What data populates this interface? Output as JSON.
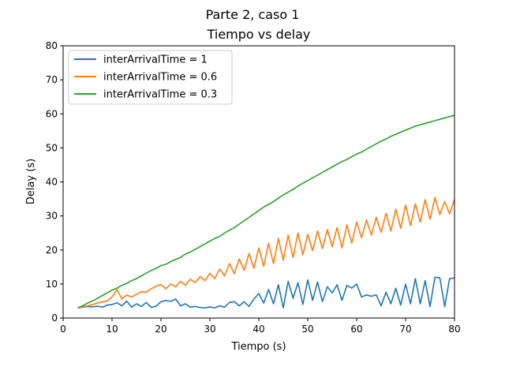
{
  "chart_data": {
    "type": "line",
    "suptitle": "Parte 2, caso 1",
    "title": "Tiempo vs delay",
    "xlabel": "Tiempo (s)",
    "ylabel": "Delay (s)",
    "xlim": [
      0,
      80
    ],
    "ylim": [
      0,
      80
    ],
    "xticks": [
      "0",
      "10",
      "20",
      "30",
      "40",
      "50",
      "60",
      "70",
      "80"
    ],
    "yticks": [
      "0",
      "10",
      "20",
      "30",
      "40",
      "50",
      "60",
      "70",
      "80"
    ],
    "grid": false,
    "legend_position": "upper-left",
    "series": [
      {
        "name": "interArrivalTime = 1",
        "color": "#1f77b4",
        "x": [
          3,
          4,
          5,
          6,
          7,
          8,
          9,
          10,
          11,
          12,
          13,
          14,
          15,
          16,
          17,
          18,
          19,
          20,
          21,
          22,
          23,
          24,
          25,
          26,
          27,
          28,
          29,
          30,
          31,
          32,
          33,
          34,
          35,
          36,
          37,
          38,
          39,
          40,
          41,
          42,
          43,
          44,
          45,
          46,
          47,
          48,
          49,
          50,
          51,
          52,
          53,
          54,
          55,
          56,
          57,
          58,
          59,
          60,
          61,
          62,
          63,
          64,
          65,
          66,
          67,
          68,
          69,
          70,
          71,
          72,
          73,
          74,
          75,
          76,
          77,
          78,
          79,
          80
        ],
        "y": [
          3.0,
          3.2,
          3.4,
          3.3,
          3.5,
          3.2,
          3.8,
          4.0,
          4.5,
          3.6,
          5.0,
          3.2,
          4.2,
          3.4,
          4.6,
          3.1,
          3.5,
          4.8,
          5.2,
          4.9,
          5.6,
          3.6,
          4.2,
          3.2,
          3.4,
          3.1,
          3.0,
          3.3,
          3.0,
          3.6,
          3.2,
          4.6,
          4.8,
          3.6,
          4.8,
          3.4,
          5.6,
          7.2,
          4.4,
          8.4,
          4.2,
          9.8,
          3.0,
          10.8,
          5.8,
          10.4,
          4.0,
          11.2,
          5.2,
          10.6,
          4.8,
          9.2,
          7.4,
          9.8,
          5.2,
          9.6,
          8.8,
          10.0,
          6.2,
          6.8,
          6.4,
          6.8,
          3.6,
          7.6,
          4.2,
          8.8,
          3.8,
          10.0,
          4.2,
          11.6,
          4.2,
          11.0,
          3.4,
          12.0,
          11.8,
          3.4,
          11.6,
          11.8
        ]
      },
      {
        "name": "interArrivalTime = 0.6",
        "color": "#ff7f0e",
        "x": [
          3,
          4,
          5,
          6,
          7,
          8,
          9,
          10,
          11,
          12,
          13,
          14,
          15,
          16,
          17,
          18,
          19,
          20,
          21,
          22,
          23,
          24,
          25,
          26,
          27,
          28,
          29,
          30,
          31,
          32,
          33,
          34,
          35,
          36,
          37,
          38,
          39,
          40,
          41,
          42,
          43,
          44,
          45,
          46,
          47,
          48,
          49,
          50,
          51,
          52,
          53,
          54,
          55,
          56,
          57,
          58,
          59,
          60,
          61,
          62,
          63,
          64,
          65,
          66,
          67,
          68,
          69,
          70,
          71,
          72,
          73,
          74,
          75,
          76,
          77,
          78,
          79,
          80
        ],
        "y": [
          3.0,
          3.3,
          3.6,
          4.0,
          4.4,
          4.8,
          5.0,
          6.2,
          8.4,
          5.6,
          6.8,
          6.2,
          7.0,
          7.8,
          7.6,
          8.6,
          9.4,
          9.8,
          8.6,
          10.0,
          9.2,
          10.8,
          9.6,
          11.4,
          10.4,
          12.2,
          11.0,
          13.2,
          11.6,
          14.4,
          12.4,
          16.0,
          13.0,
          17.4,
          14.0,
          19.0,
          14.6,
          20.6,
          15.2,
          22.0,
          16.0,
          23.4,
          17.0,
          24.4,
          17.8,
          25.0,
          18.6,
          24.6,
          19.8,
          25.6,
          20.4,
          26.0,
          21.0,
          26.6,
          20.6,
          27.4,
          22.0,
          28.2,
          23.6,
          28.8,
          24.4,
          29.6,
          25.2,
          30.8,
          25.6,
          32.0,
          26.4,
          33.2,
          27.2,
          33.6,
          28.2,
          34.8,
          29.0,
          35.4,
          30.4,
          34.2,
          30.6,
          34.8
        ]
      },
      {
        "name": "interArrivalTime = 0.3",
        "color": "#2ca02c",
        "x": [
          3,
          4,
          5,
          6,
          7,
          8,
          9,
          10,
          11,
          12,
          13,
          14,
          15,
          16,
          17,
          18,
          19,
          20,
          21,
          22,
          23,
          24,
          25,
          26,
          27,
          28,
          29,
          30,
          31,
          32,
          33,
          34,
          35,
          36,
          37,
          38,
          39,
          40,
          41,
          42,
          43,
          44,
          45,
          46,
          47,
          48,
          49,
          50,
          51,
          52,
          53,
          54,
          55,
          56,
          57,
          58,
          59,
          60,
          61,
          62,
          63,
          64,
          65,
          66,
          67,
          68,
          69,
          70,
          71,
          72,
          73,
          74,
          75,
          76,
          77,
          78,
          79,
          80
        ],
        "y": [
          3.0,
          3.6,
          4.4,
          5.0,
          5.8,
          6.6,
          7.4,
          8.2,
          8.8,
          9.6,
          10.2,
          11.0,
          11.6,
          12.4,
          13.2,
          14.0,
          14.6,
          15.4,
          15.8,
          16.6,
          17.2,
          17.8,
          18.8,
          19.4,
          20.2,
          21.0,
          21.8,
          22.6,
          23.4,
          24.0,
          25.0,
          25.8,
          26.6,
          27.6,
          28.6,
          29.6,
          30.6,
          31.6,
          32.6,
          33.4,
          34.2,
          35.2,
          36.2,
          37.0,
          37.8,
          38.8,
          39.6,
          40.4,
          41.2,
          42.0,
          42.8,
          43.6,
          44.4,
          45.2,
          46.0,
          46.6,
          47.4,
          48.2,
          48.8,
          49.6,
          50.4,
          51.2,
          52.0,
          52.6,
          53.4,
          54.0,
          54.6,
          55.2,
          55.8,
          56.4,
          56.8,
          57.2,
          57.6,
          58.0,
          58.4,
          58.8,
          59.2,
          59.6
        ]
      }
    ]
  }
}
